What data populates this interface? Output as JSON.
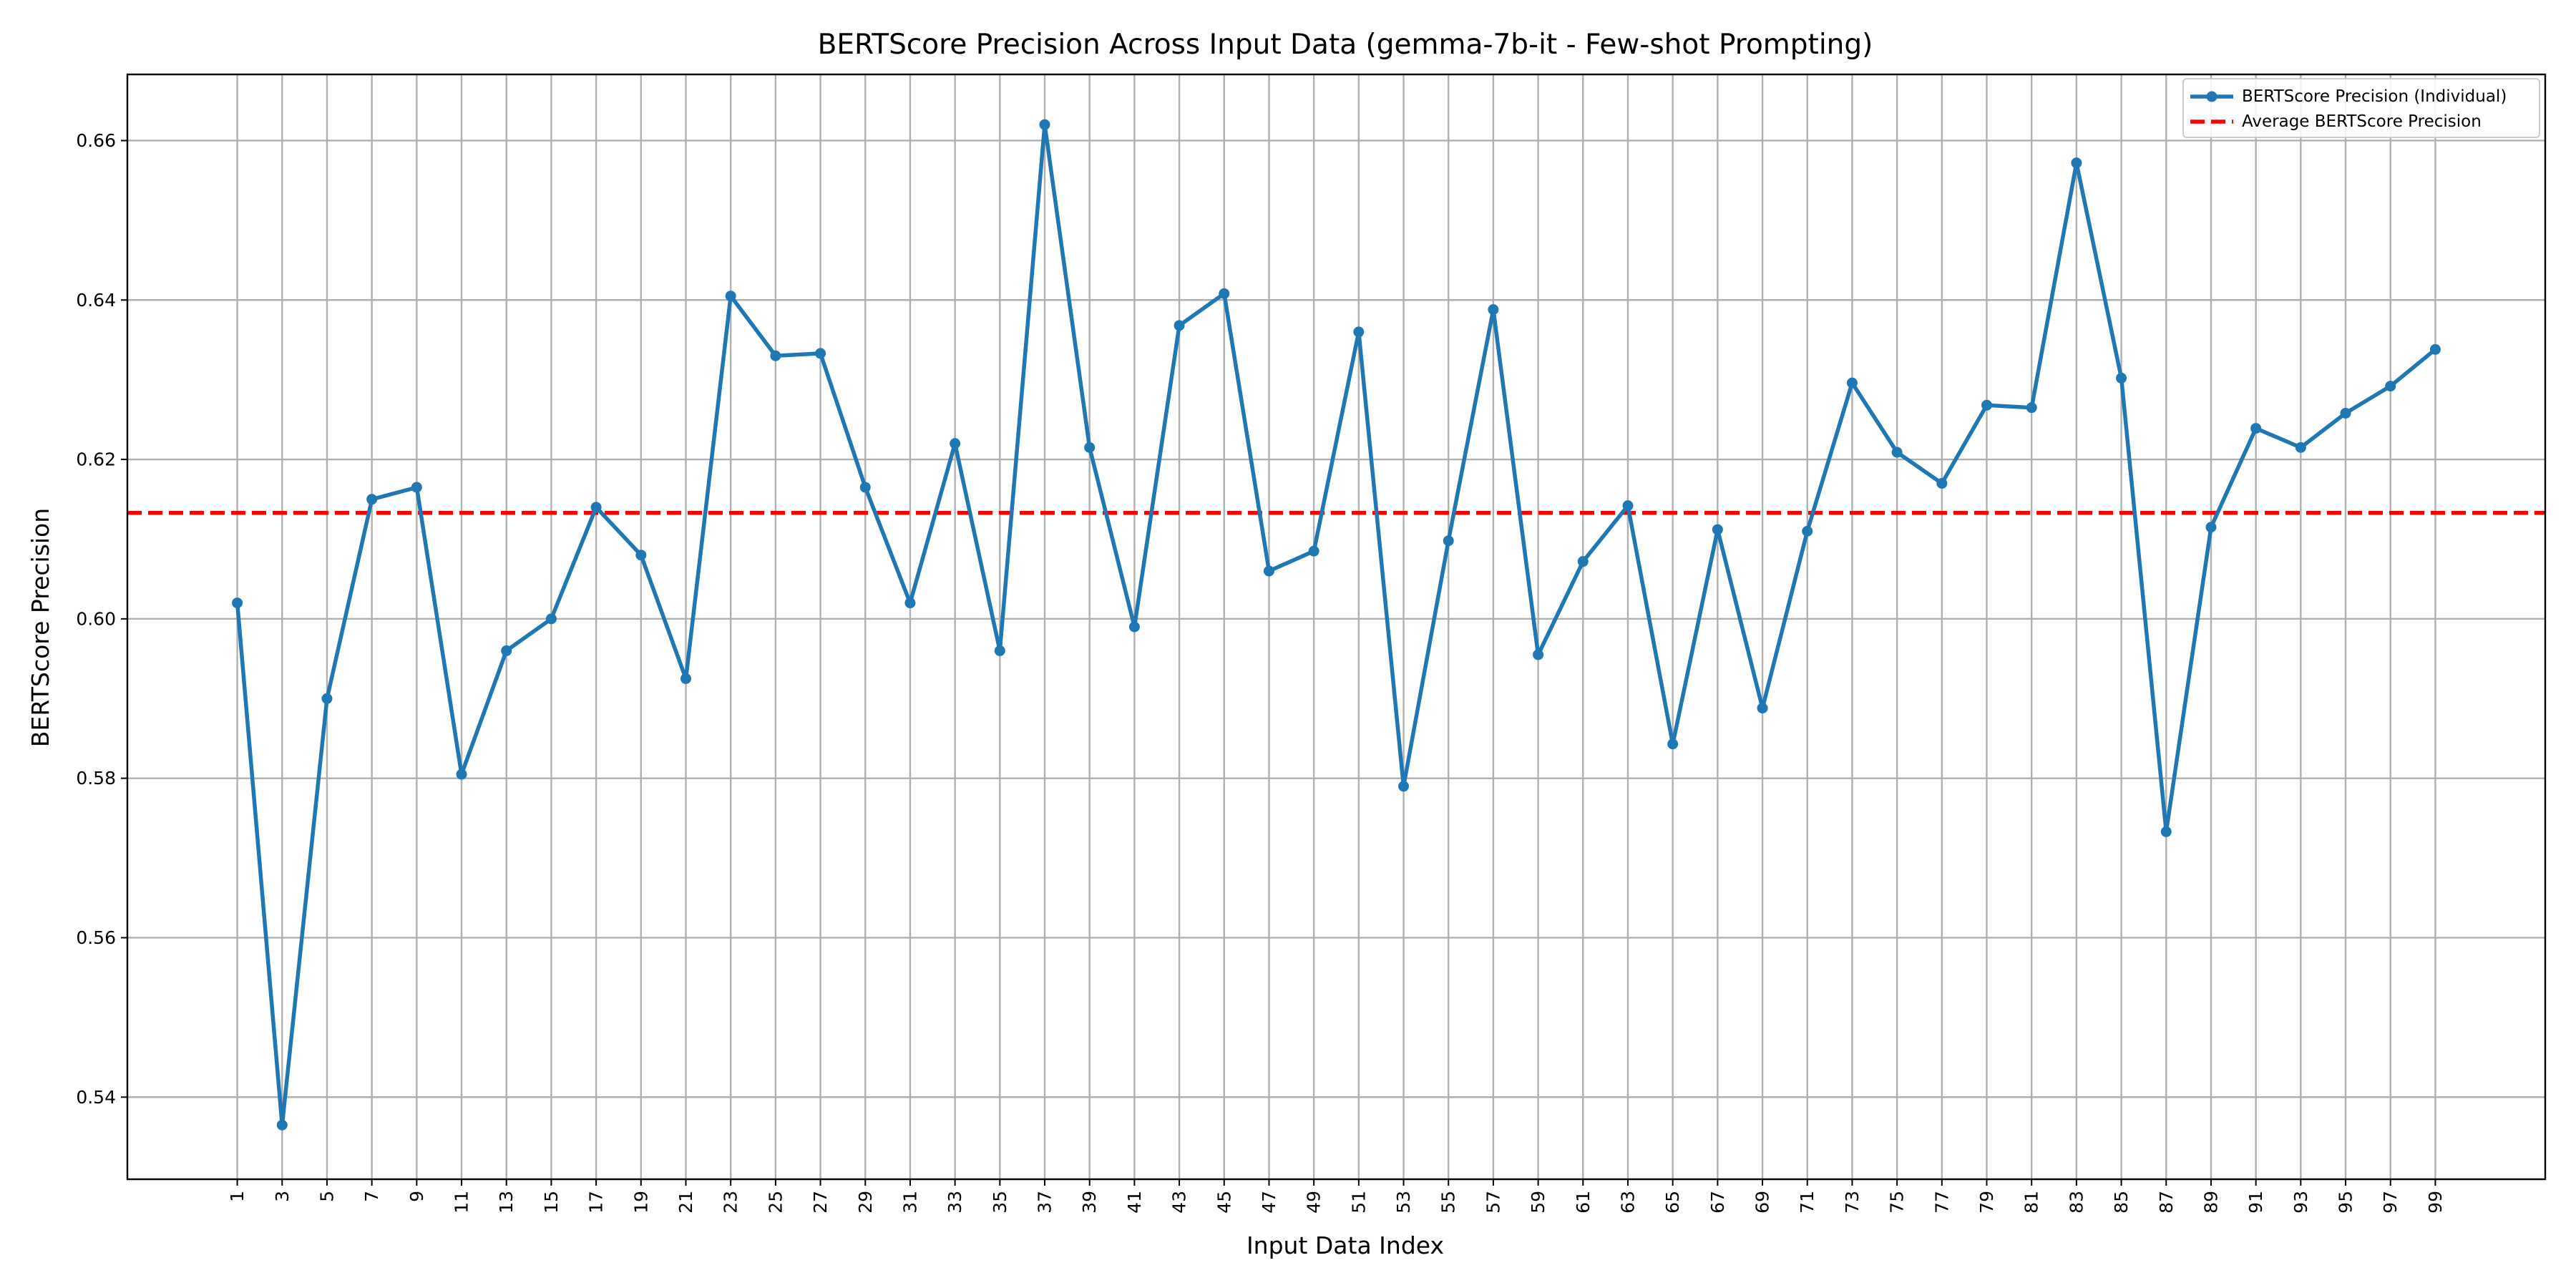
{
  "chart_data": {
    "type": "line",
    "title": "BERTScore Precision Across Input Data (gemma-7b-it - Few-shot Prompting)",
    "xlabel": "Input Data Index",
    "ylabel": "BERTScore Precision",
    "x": [
      1,
      3,
      5,
      7,
      9,
      11,
      13,
      15,
      17,
      19,
      21,
      23,
      25,
      27,
      29,
      31,
      33,
      35,
      37,
      39,
      41,
      43,
      45,
      47,
      49,
      51,
      53,
      55,
      57,
      59,
      61,
      63,
      65,
      67,
      69,
      71,
      73,
      75,
      77,
      79,
      81,
      83,
      85,
      87,
      89,
      91,
      93,
      95,
      97,
      99
    ],
    "xlim": [
      -3.9,
      103.9
    ],
    "ylim": [
      0.5297,
      0.6683
    ],
    "yticks": [
      0.54,
      0.56,
      0.58,
      0.6,
      0.62,
      0.64,
      0.66
    ],
    "ytick_labels": [
      "0.54",
      "0.56",
      "0.58",
      "0.60",
      "0.62",
      "0.64",
      "0.66"
    ],
    "grid": true,
    "legend_position": "top-right",
    "series": [
      {
        "name": "BERTScore Precision (Individual)",
        "kind": "line-marker",
        "color": "#1f77b4",
        "values": [
          0.602,
          0.5365,
          0.59,
          0.615,
          0.6165,
          0.5805,
          0.596,
          0.6,
          0.614,
          0.608,
          0.5925,
          0.6405,
          0.633,
          0.6333,
          0.6165,
          0.602,
          0.622,
          0.596,
          0.662,
          0.6215,
          0.599,
          0.6368,
          0.6408,
          0.606,
          0.6085,
          0.636,
          0.579,
          0.6098,
          0.6388,
          0.5955,
          0.6072,
          0.6142,
          0.5843,
          0.6112,
          0.5888,
          0.611,
          0.6296,
          0.6209,
          0.617,
          0.6268,
          0.6265,
          0.6572,
          0.6302,
          0.5733,
          0.6115,
          0.6239,
          0.6215,
          0.6258,
          0.6292,
          0.6338
        ]
      },
      {
        "name": "Average BERTScore Precision",
        "kind": "hline-dashed",
        "color": "#ff0000",
        "value": 0.6133
      }
    ]
  }
}
